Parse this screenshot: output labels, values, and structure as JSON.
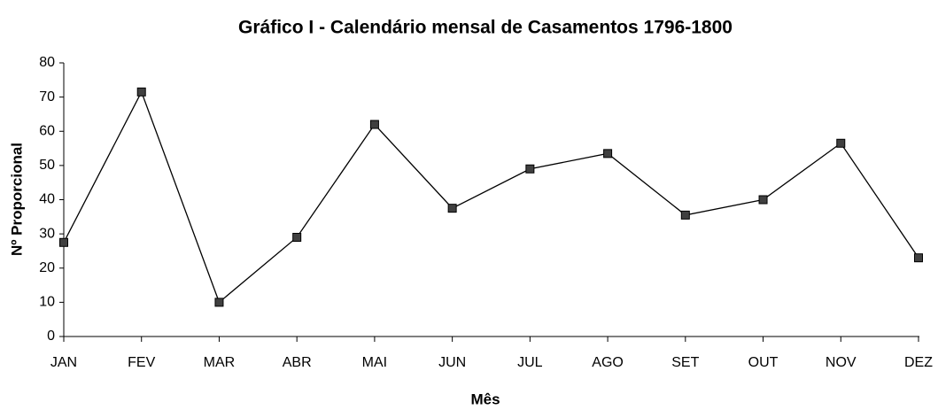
{
  "chart_data": {
    "type": "line",
    "title": "Gráfico I - Calendário mensal de Casamentos 1796-1800",
    "x_label": "Mês",
    "y_label": "Nº Proporcional",
    "categories": [
      "JAN",
      "FEV",
      "MAR",
      "ABR",
      "MAI",
      "JUN",
      "JUL",
      "AGO",
      "SET",
      "OUT",
      "NOV",
      "DEZ"
    ],
    "values": [
      27.5,
      71.5,
      10,
      29,
      62,
      37.5,
      49,
      53.5,
      35.5,
      40,
      56.5,
      23
    ],
    "color": "#000000",
    "marker_color": "#404040",
    "ylim": [
      0,
      80
    ],
    "yticks": [
      0,
      10,
      20,
      30,
      40,
      50,
      60,
      70,
      80
    ],
    "grid": false
  }
}
